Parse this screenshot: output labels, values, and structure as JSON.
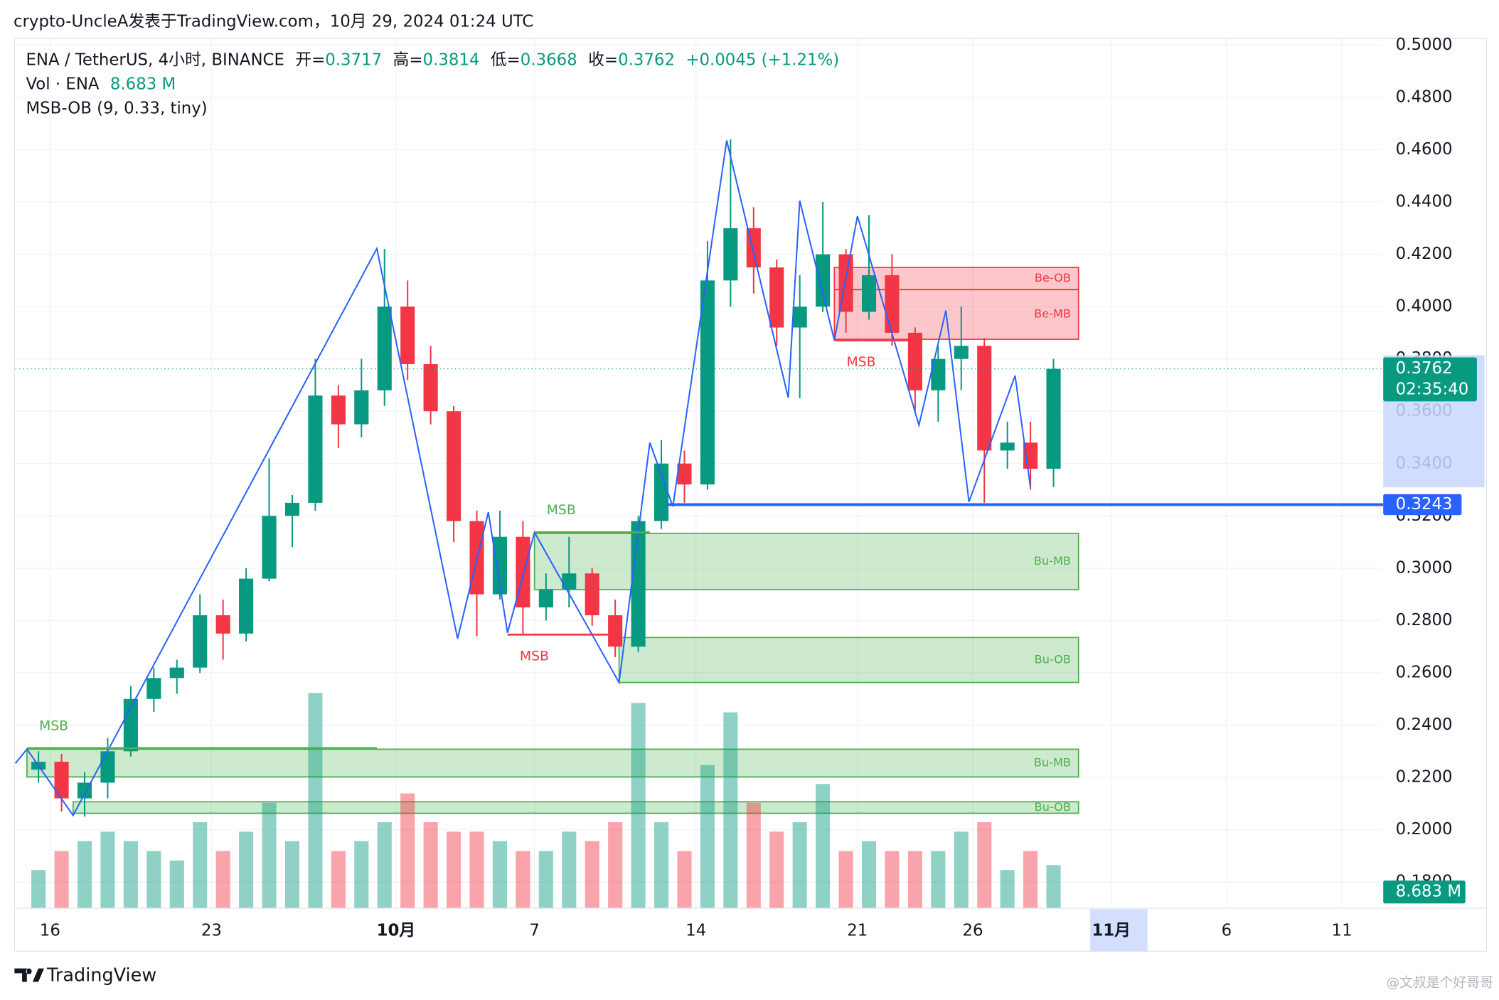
{
  "header": {
    "text": "crypto-UncleA发表于TradingView.com，10月 29, 2024 01:24 UTC"
  },
  "footer": {
    "brand": "TradingView",
    "watermark": "@文叔是个好哥哥"
  },
  "chart_data": {
    "type": "candlestick",
    "legend": {
      "symbol": "ENA / TetherUS, 4小时, BINANCE",
      "open_label": "开=",
      "open": 0.3717,
      "high_label": "高=",
      "high": 0.3814,
      "low_label": "低=",
      "low": 0.3668,
      "close_label": "收=",
      "close": 0.3762,
      "change": "+0.0045 (+1.21%)",
      "volume_title": "Vol · ENA",
      "volume": "8.683 M",
      "indicator": "MSB-OB (9, 0.33, tiny)"
    },
    "countdown": "02:35:40",
    "up_color": "#089981",
    "down_color": "#f23645",
    "zigzag_color": "#2962ff",
    "x": [
      "2024-09-15",
      "2024-09-16",
      "2024-09-17",
      "2024-09-18",
      "2024-09-19",
      "2024-09-20",
      "2024-09-21",
      "2024-09-22",
      "2024-09-23",
      "2024-09-24",
      "2024-09-25",
      "2024-09-26",
      "2024-09-27",
      "2024-09-28",
      "2024-09-29",
      "2024-09-30",
      "2024-10-01",
      "2024-10-02",
      "2024-10-03",
      "2024-10-04",
      "2024-10-05",
      "2024-10-06",
      "2024-10-07",
      "2024-10-08",
      "2024-10-09",
      "2024-10-10",
      "2024-10-11",
      "2024-10-12",
      "2024-10-13",
      "2024-10-14",
      "2024-10-15",
      "2024-10-16",
      "2024-10-17",
      "2024-10-18",
      "2024-10-19",
      "2024-10-20",
      "2024-10-21",
      "2024-10-22",
      "2024-10-23",
      "2024-10-24",
      "2024-10-25",
      "2024-10-26",
      "2024-10-27",
      "2024-10-28",
      "2024-10-29"
    ],
    "open": [
      0.223,
      0.226,
      0.212,
      0.218,
      0.23,
      0.25,
      0.258,
      0.262,
      0.282,
      0.275,
      0.296,
      0.32,
      0.325,
      0.366,
      0.355,
      0.368,
      0.4,
      0.378,
      0.36,
      0.318,
      0.29,
      0.312,
      0.285,
      0.292,
      0.298,
      0.282,
      0.27,
      0.318,
      0.34,
      0.332,
      0.41,
      0.43,
      0.415,
      0.392,
      0.4,
      0.42,
      0.398,
      0.412,
      0.39,
      0.368,
      0.38,
      0.385,
      0.345,
      0.348,
      0.338
    ],
    "high": [
      0.23,
      0.229,
      0.222,
      0.235,
      0.255,
      0.262,
      0.265,
      0.29,
      0.288,
      0.3,
      0.342,
      0.328,
      0.38,
      0.37,
      0.38,
      0.422,
      0.41,
      0.385,
      0.362,
      0.322,
      0.322,
      0.318,
      0.298,
      0.312,
      0.3,
      0.288,
      0.32,
      0.349,
      0.345,
      0.425,
      0.464,
      0.438,
      0.418,
      0.412,
      0.44,
      0.422,
      0.435,
      0.42,
      0.392,
      0.385,
      0.4,
      0.388,
      0.356,
      0.356,
      0.38
    ],
    "low": [
      0.218,
      0.207,
      0.205,
      0.212,
      0.228,
      0.245,
      0.252,
      0.26,
      0.265,
      0.272,
      0.295,
      0.308,
      0.322,
      0.346,
      0.35,
      0.362,
      0.372,
      0.355,
      0.31,
      0.274,
      0.288,
      0.275,
      0.28,
      0.285,
      0.278,
      0.266,
      0.268,
      0.315,
      0.325,
      0.33,
      0.4,
      0.405,
      0.385,
      0.365,
      0.398,
      0.39,
      0.395,
      0.385,
      0.36,
      0.356,
      0.368,
      0.325,
      0.338,
      0.33,
      0.331
    ],
    "close": [
      0.226,
      0.212,
      0.218,
      0.23,
      0.25,
      0.258,
      0.262,
      0.282,
      0.275,
      0.296,
      0.32,
      0.325,
      0.366,
      0.355,
      0.368,
      0.4,
      0.378,
      0.36,
      0.318,
      0.29,
      0.312,
      0.285,
      0.292,
      0.298,
      0.282,
      0.27,
      0.318,
      0.34,
      0.332,
      0.41,
      0.43,
      0.415,
      0.392,
      0.4,
      0.42,
      0.398,
      0.412,
      0.39,
      0.368,
      0.38,
      0.385,
      0.345,
      0.348,
      0.338,
      0.3762
    ],
    "volumes": [
      7.7,
      11.5,
      13.5,
      15.4,
      13.5,
      11.5,
      9.6,
      17.3,
      11.5,
      15.4,
      21.2,
      13.5,
      43.3,
      11.5,
      13.5,
      17.3,
      23.1,
      17.3,
      15.4,
      15.4,
      13.5,
      11.5,
      11.5,
      15.4,
      13.5,
      17.3,
      41.3,
      17.3,
      11.5,
      28.8,
      39.4,
      21.2,
      15.4,
      17.3,
      25,
      11.5,
      13.5,
      11.5,
      11.5,
      11.5,
      15.4,
      17.3,
      7.7,
      11.5,
      8.683
    ],
    "zigzag": {
      "x": [
        "2024-09-14T12:00",
        "2024-09-15T00:00",
        "2024-09-17T00:00",
        "2024-09-30T04:00",
        "2024-10-03T16:00",
        "2024-10-05T00:00",
        "2024-10-05T20:00",
        "2024-10-07T00:00",
        "2024-10-10T16:00",
        "2024-10-12T00:00",
        "2024-10-13T00:00",
        "2024-10-15T08:00",
        "2024-10-18T00:00",
        "2024-10-18T12:00",
        "2024-10-20T00:00",
        "2024-10-21T00:00",
        "2024-10-23T16:00",
        "2024-10-24T20:00",
        "2024-10-25T20:00",
        "2024-10-27T20:00",
        "2024-10-28T12:00"
      ],
      "values": [
        0.2254,
        0.2308,
        0.2055,
        0.4222,
        0.2731,
        0.3214,
        0.2753,
        0.3137,
        0.2563,
        0.348,
        0.3236,
        0.4635,
        0.3652,
        0.4405,
        0.3871,
        0.4346,
        0.3547,
        0.3985,
        0.3254,
        0.3736,
        0.3309
      ]
    },
    "zone_end": "2024-10-30T14:00",
    "zones": [
      {
        "label": "Be-OB",
        "start": "2024-10-20T00:00",
        "top": 0.415,
        "bottom": 0.4065,
        "color": "#f23645"
      },
      {
        "label": "Be-MB",
        "start": "2024-10-20T00:00",
        "top": 0.4065,
        "bottom": 0.3875,
        "color": "#f23645"
      },
      {
        "label": "Bu-MB",
        "start": "2024-10-07T00:00",
        "top": 0.3133,
        "bottom": 0.2918,
        "color": "#4caf50"
      },
      {
        "label": "Bu-OB",
        "start": "2024-10-10T16:00",
        "top": 0.2735,
        "bottom": 0.2563,
        "color": "#4caf50"
      },
      {
        "label": "Bu-MB",
        "start": "2024-09-15T00:00",
        "top": 0.2308,
        "bottom": 0.2202,
        "color": "#4caf50"
      },
      {
        "label": "Bu-OB",
        "start": "2024-09-17T00:00",
        "top": 0.2107,
        "bottom": 0.2063,
        "color": "#4caf50"
      }
    ],
    "msb": [
      {
        "label": "MSB",
        "start": "2024-10-07T00:00",
        "end": "2024-10-12T00:00",
        "price": 0.3137,
        "color": "#4caf50"
      },
      {
        "label": "MSB",
        "start": "2024-10-05T20:00",
        "end": "2024-10-10T16:00",
        "price": 0.2746,
        "color": "#f23645"
      },
      {
        "label": "MSB",
        "start": "2024-09-15T00:00",
        "end": "2024-09-30T04:00",
        "price": 0.2312,
        "color": "#4caf50"
      },
      {
        "label": "MSB",
        "start": "2024-10-20T00:00",
        "end": "2024-10-23T16:00",
        "price": 0.3871,
        "color": "#f23645"
      }
    ],
    "price_line": 0.3243,
    "price_line_start": "2024-10-12T17:00",
    "price_line_color": "#2962ff",
    "ylim": [
      0.17,
      0.5026
    ],
    "yticks": [
      {
        "value": 0.18,
        "label": "0.1800"
      },
      {
        "value": 0.2,
        "label": "0.2000"
      },
      {
        "value": 0.22,
        "label": "0.2200"
      },
      {
        "value": 0.24,
        "label": "0.2400"
      },
      {
        "value": 0.26,
        "label": "0.2600"
      },
      {
        "value": 0.28,
        "label": "0.2800"
      },
      {
        "value": 0.3,
        "label": "0.3000"
      },
      {
        "value": 0.32,
        "label": "0.3200"
      },
      {
        "value": 0.34,
        "label": "0.3400"
      },
      {
        "value": 0.36,
        "label": "0.3600"
      },
      {
        "value": 0.38,
        "label": "0.3800"
      },
      {
        "value": 0.4,
        "label": "0.4000"
      },
      {
        "value": 0.42,
        "label": "0.4200"
      },
      {
        "value": 0.44,
        "label": "0.4400"
      },
      {
        "value": 0.46,
        "label": "0.4600"
      },
      {
        "value": 0.48,
        "label": "0.4800"
      },
      {
        "value": 0.5,
        "label": "0.5000"
      }
    ],
    "xlim": [
      "2024-09-14T12:00",
      "2024-11-12T17:00"
    ],
    "xticks": [
      {
        "value": "2024-09-16",
        "label": "16"
      },
      {
        "value": "2024-09-23",
        "label": "23"
      },
      {
        "value": "2024-10-01",
        "label": "10月"
      },
      {
        "value": "2024-10-07",
        "label": "7"
      },
      {
        "value": "2024-10-14",
        "label": "14"
      },
      {
        "value": "2024-10-21",
        "label": "21"
      },
      {
        "value": "2024-10-26",
        "label": "26"
      },
      {
        "value": "2024-11-01",
        "label": "11月"
      },
      {
        "value": "2024-11-06",
        "label": "6"
      },
      {
        "value": "2024-11-11",
        "label": "11"
      }
    ],
    "grid": true
  }
}
